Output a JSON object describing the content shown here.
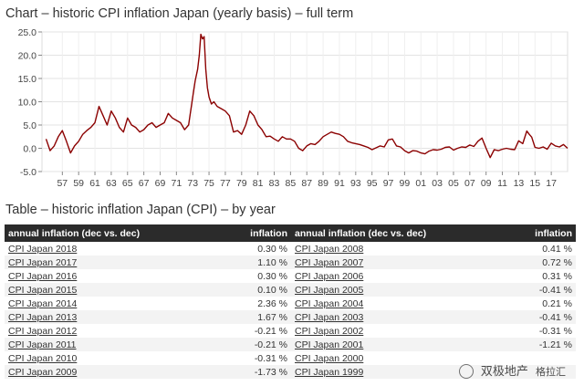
{
  "chart_title": "Chart – historic CPI inflation Japan (yearly basis) – full term",
  "table_title": "Table – historic inflation Japan (CPI) – by year",
  "chart_data": {
    "type": "line",
    "title": "Chart – historic CPI inflation Japan (yearly basis) – full term",
    "xlabel": "",
    "ylabel": "",
    "xlim": [
      1954.5,
      2019.0
    ],
    "ylim": [
      -5.0,
      25.0
    ],
    "y_ticks": [
      "25.0",
      "20.0",
      "15.0",
      "10.0",
      "5.0",
      "0.0",
      "-5.0"
    ],
    "x_ticks": [
      "57",
      "59",
      "61",
      "63",
      "65",
      "67",
      "69",
      "71",
      "73",
      "75",
      "77",
      "79",
      "81",
      "83",
      "85",
      "87",
      "89",
      "91",
      "93",
      "95",
      "97",
      "99",
      "01",
      "03",
      "05",
      "07",
      "09",
      "11",
      "13",
      "15",
      "17"
    ],
    "grid": true,
    "color": "#8b0000",
    "series": [
      {
        "x": [
          1955.0,
          1955.5,
          1956.0,
          1956.5,
          1957.0,
          1957.5,
          1958.0,
          1958.5,
          1959.0,
          1959.5,
          1960.0,
          1960.5,
          1961.0,
          1961.5,
          1962.0,
          1962.5,
          1963.0,
          1963.5,
          1964.0,
          1964.5,
          1965.0,
          1965.5,
          1966.0,
          1966.5,
          1967.0,
          1967.5,
          1968.0,
          1968.5,
          1969.0,
          1969.5,
          1970.0,
          1970.5,
          1971.0,
          1971.5,
          1972.0,
          1972.5,
          1973.0,
          1973.3,
          1973.6,
          1973.8,
          1974.0,
          1974.2,
          1974.4,
          1974.6,
          1974.8,
          1975.0,
          1975.3,
          1975.6,
          1976.0,
          1976.5,
          1977.0,
          1977.5,
          1978.0,
          1978.5,
          1979.0,
          1979.5,
          1980.0,
          1980.5,
          1981.0,
          1981.5,
          1982.0,
          1982.5,
          1983.0,
          1983.5,
          1984.0,
          1984.5,
          1985.0,
          1985.5,
          1986.0,
          1986.5,
          1987.0,
          1987.5,
          1988.0,
          1988.5,
          1989.0,
          1989.5,
          1990.0,
          1990.5,
          1991.0,
          1991.5,
          1992.0,
          1992.5,
          1993.0,
          1993.5,
          1994.0,
          1994.5,
          1995.0,
          1995.5,
          1996.0,
          1996.5,
          1997.0,
          1997.5,
          1998.0,
          1998.5,
          1999.0,
          1999.5,
          2000.0,
          2000.5,
          2001.0,
          2001.5,
          2002.0,
          2002.5,
          2003.0,
          2003.5,
          2004.0,
          2004.5,
          2005.0,
          2005.5,
          2006.0,
          2006.5,
          2007.0,
          2007.5,
          2008.0,
          2008.5,
          2009.0,
          2009.5,
          2010.0,
          2010.5,
          2011.0,
          2011.5,
          2012.0,
          2012.5,
          2013.0,
          2013.5,
          2014.0,
          2014.3,
          2014.6,
          2015.0,
          2015.5,
          2016.0,
          2016.5,
          2017.0,
          2017.5,
          2018.0,
          2018.5,
          2019.0
        ],
        "y": [
          2.0,
          -0.5,
          0.5,
          2.5,
          3.8,
          1.5,
          -1.0,
          0.5,
          1.5,
          3.0,
          3.8,
          4.5,
          5.5,
          9.0,
          7.0,
          5.0,
          8.0,
          6.5,
          4.5,
          3.5,
          6.5,
          5.0,
          4.5,
          3.5,
          4.0,
          5.0,
          5.5,
          4.5,
          5.0,
          5.5,
          7.5,
          6.5,
          6.0,
          5.5,
          4.0,
          5.0,
          11.0,
          14.5,
          17.0,
          20.0,
          24.5,
          23.5,
          24.0,
          17.0,
          13.0,
          11.0,
          9.5,
          10.0,
          9.0,
          8.5,
          8.0,
          7.0,
          3.5,
          3.8,
          3.0,
          5.0,
          8.0,
          7.0,
          5.0,
          4.0,
          2.5,
          2.6,
          2.0,
          1.5,
          2.5,
          2.0,
          2.0,
          1.5,
          0.0,
          -0.5,
          0.5,
          1.0,
          0.8,
          1.5,
          2.5,
          3.0,
          3.5,
          3.2,
          3.0,
          2.5,
          1.5,
          1.2,
          1.0,
          0.8,
          0.5,
          0.2,
          -0.3,
          0.1,
          0.5,
          0.3,
          1.8,
          2.0,
          0.5,
          0.3,
          -0.5,
          -1.0,
          -0.5,
          -0.6,
          -1.0,
          -1.2,
          -0.6,
          -0.3,
          -0.4,
          -0.2,
          0.2,
          0.3,
          -0.4,
          0.0,
          0.3,
          0.2,
          0.7,
          0.4,
          1.5,
          2.2,
          0.0,
          -2.0,
          -0.3,
          -0.5,
          -0.2,
          0.0,
          -0.2,
          -0.3,
          1.6,
          1.0,
          3.7,
          3.0,
          2.4,
          0.2,
          0.0,
          0.3,
          -0.2,
          1.1,
          0.5,
          0.3,
          0.8,
          0.0
        ]
      }
    ]
  },
  "table": {
    "headers": {
      "col1": "annual inflation (dec vs. dec)",
      "col2": "inflation",
      "col3": "annual inflation (dec vs. dec)",
      "col4": "inflation"
    },
    "rows": [
      {
        "l_name": "CPI Japan 2018",
        "l_val": "0.30 %",
        "r_name": "CPI Japan 2008",
        "r_val": "0.41 %"
      },
      {
        "l_name": "CPI Japan 2017",
        "l_val": "1.10 %",
        "r_name": "CPI Japan 2007",
        "r_val": "0.72 %"
      },
      {
        "l_name": "CPI Japan 2016",
        "l_val": "0.30 %",
        "r_name": "CPI Japan 2006",
        "r_val": "0.31 %"
      },
      {
        "l_name": "CPI Japan 2015",
        "l_val": "0.10 %",
        "r_name": "CPI Japan 2005",
        "r_val": "-0.41 %"
      },
      {
        "l_name": "CPI Japan 2014",
        "l_val": "2.36 %",
        "r_name": "CPI Japan 2004",
        "r_val": "0.21 %"
      },
      {
        "l_name": "CPI Japan 2013",
        "l_val": "1.67 %",
        "r_name": "CPI Japan 2003",
        "r_val": "-0.41 %"
      },
      {
        "l_name": "CPI Japan 2012",
        "l_val": "-0.21 %",
        "r_name": "CPI Japan 2002",
        "r_val": "-0.31 %"
      },
      {
        "l_name": "CPI Japan 2011",
        "l_val": "-0.21 %",
        "r_name": "CPI Japan 2001",
        "r_val": "-1.21 %"
      },
      {
        "l_name": "CPI Japan 2010",
        "l_val": "-0.31 %",
        "r_name": "CPI Japan 2000",
        "r_val": ""
      },
      {
        "l_name": "CPI Japan 2009",
        "l_val": "-1.73 %",
        "r_name": "CPI Japan 1999",
        "r_val": ""
      }
    ]
  },
  "watermark": {
    "text": "双极地产",
    "subtext": "格拉汇"
  }
}
